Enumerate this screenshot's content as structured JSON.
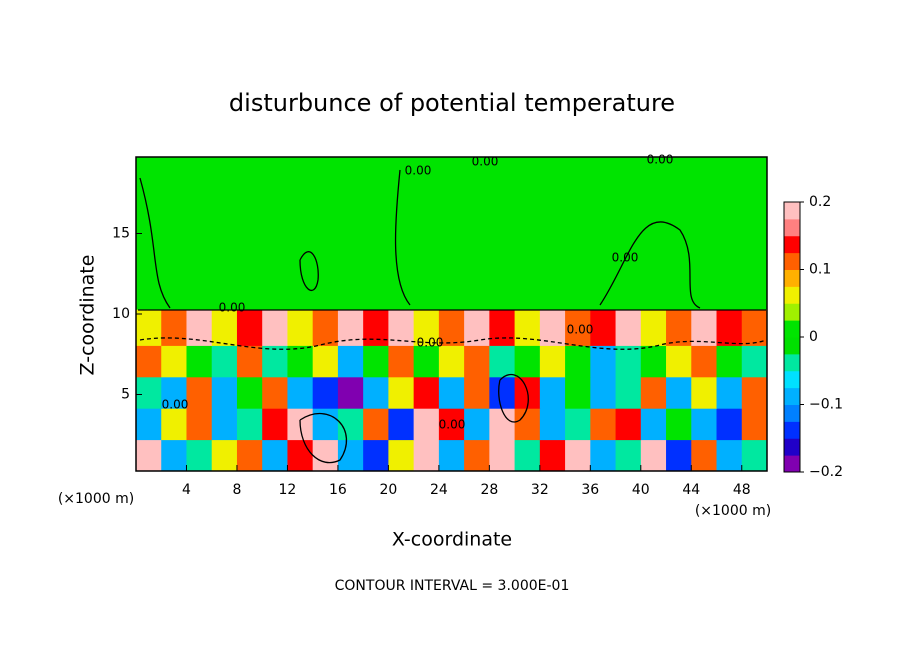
{
  "chart_data": {
    "type": "contour",
    "title": "disturbunce of potential temperature",
    "x_label": "X-coordinate",
    "y_label": "Z-coordinate",
    "x_unit": "(×1000 m)",
    "footer": "CONTOUR INTERVAL = 3.000E-01",
    "xlim": [
      0,
      50
    ],
    "ylim": [
      0.25,
      19.75
    ],
    "xticks": [
      4,
      8,
      12,
      16,
      20,
      24,
      28,
      32,
      36,
      40,
      44,
      48
    ],
    "yticks": [
      5,
      10,
      15
    ],
    "xbins": [
      0,
      2,
      4,
      6,
      8,
      10,
      12,
      14,
      16,
      18,
      20,
      22,
      24,
      26,
      28,
      30,
      32,
      34,
      36,
      38,
      40,
      42,
      44,
      46,
      48,
      50
    ],
    "zbins": [
      0.25,
      2.2,
      4.15,
      6.1,
      8.05,
      10.3,
      19.75
    ],
    "values": [
      [
        0.2,
        -0.1,
        -0.05,
        0.05,
        0.1,
        -0.1,
        0.15,
        0.2,
        -0.1,
        -0.15,
        0.05,
        0.2,
        -0.1,
        0.1,
        0.2,
        -0.05,
        0.15,
        0.2,
        -0.1,
        -0.05,
        0.2,
        -0.15,
        0.1,
        -0.1,
        -0.05
      ],
      [
        -0.1,
        0.05,
        0.1,
        -0.1,
        -0.05,
        0.15,
        0.2,
        -0.1,
        -0.05,
        0.1,
        -0.15,
        0.2,
        0.15,
        -0.1,
        0.2,
        0.1,
        -0.1,
        -0.05,
        0.1,
        0.15,
        -0.1,
        0,
        -0.1,
        -0.15,
        0.1
      ],
      [
        -0.05,
        -0.1,
        0.1,
        -0.1,
        0,
        0.1,
        -0.1,
        -0.15,
        -0.2,
        -0.1,
        0.05,
        0.15,
        -0.1,
        0.1,
        -0.15,
        0.15,
        -0.1,
        0,
        -0.1,
        -0.05,
        0.1,
        -0.1,
        0.05,
        -0.1,
        0.1
      ],
      [
        0.1,
        0.05,
        0,
        -0.05,
        0.1,
        -0.05,
        0,
        0.05,
        -0.1,
        0,
        0.1,
        0,
        0.05,
        0.1,
        -0.05,
        0,
        0.05,
        0,
        -0.1,
        -0.05,
        0,
        0.05,
        0.1,
        0,
        -0.05
      ],
      [
        0.05,
        0.1,
        0.2,
        0.05,
        0.15,
        0.2,
        0.05,
        0.1,
        0.2,
        0.15,
        0.2,
        0.05,
        0.1,
        0.2,
        0.15,
        0.05,
        0.2,
        0.1,
        0.15,
        0.2,
        0.05,
        0.1,
        0.2,
        0.15,
        0.1
      ],
      [
        0,
        0,
        0,
        0,
        0,
        0,
        0,
        0,
        0,
        0,
        0,
        0,
        0,
        0,
        0,
        0,
        0,
        0,
        0,
        0,
        0,
        0,
        0,
        0,
        0
      ]
    ],
    "clim": [
      -0.2,
      0.2
    ],
    "cticks": [
      {
        "value": 0.2,
        "label": "0.2"
      },
      {
        "value": 0.1,
        "label": "0.1"
      },
      {
        "value": 0,
        "label": "0"
      },
      {
        "value": -0.1,
        "label": "−0.1"
      },
      {
        "value": -0.2,
        "label": "−0.2"
      }
    ],
    "colors": [
      "#8000b0",
      "#2000c8",
      "#0030ff",
      "#0080ff",
      "#00b0ff",
      "#00e0ff",
      "#00e8a0",
      "#00e000",
      "#00e400",
      "#a0f000",
      "#f0f000",
      "#ffb000",
      "#ff6000",
      "#ff0000",
      "#ff8080",
      "#ffc0c0"
    ],
    "contour_labels": [
      "0.00",
      "0.00",
      "0.00",
      "0.00",
      "0.00",
      "0.00",
      "0.00",
      "0.00",
      "0.00"
    ]
  }
}
